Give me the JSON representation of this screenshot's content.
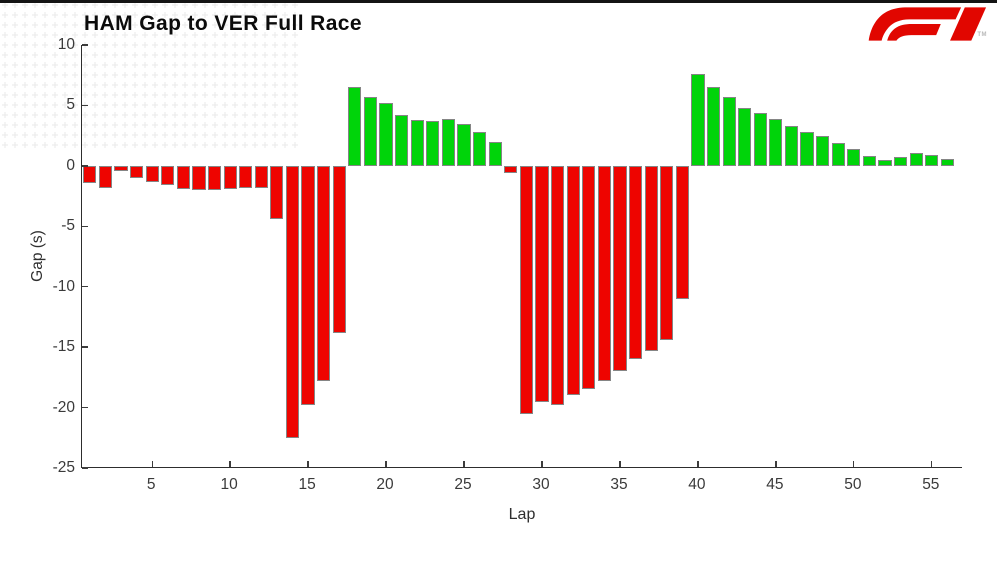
{
  "page": {
    "brand": {
      "trademark": "TM",
      "logo_color": "#E10600"
    }
  },
  "chart_data": {
    "type": "bar",
    "title": "HAM Gap to VER Full Race",
    "xlabel": "Lap",
    "ylabel": "Gap (s)",
    "xlim": [
      0.5,
      57
    ],
    "ylim": [
      -25,
      10
    ],
    "xticks": [
      5,
      10,
      15,
      20,
      25,
      30,
      35,
      40,
      45,
      50,
      55
    ],
    "yticks": [
      10,
      5,
      0,
      -5,
      -10,
      -15,
      -20,
      -25
    ],
    "grid": false,
    "legend": "none",
    "positive_color": "#00D40A",
    "negative_color": "#EE0400",
    "bar_edge_color": "#858585",
    "x": [
      1,
      2,
      3,
      4,
      5,
      6,
      7,
      8,
      9,
      10,
      11,
      12,
      13,
      14,
      15,
      16,
      17,
      18,
      19,
      20,
      21,
      22,
      23,
      24,
      25,
      26,
      27,
      28,
      29,
      30,
      31,
      32,
      33,
      34,
      35,
      36,
      37,
      38,
      39,
      40,
      41,
      42,
      43,
      44,
      45,
      46,
      47,
      48,
      49,
      50,
      51,
      52,
      53,
      54,
      55,
      56
    ],
    "values": [
      -1.4,
      -1.8,
      -0.4,
      -1.0,
      -1.3,
      -1.6,
      -1.9,
      -2.0,
      -2.0,
      -1.9,
      -1.8,
      -1.8,
      -4.4,
      -22.5,
      -19.8,
      -17.8,
      -13.8,
      6.5,
      5.7,
      5.2,
      4.2,
      3.8,
      3.7,
      3.9,
      3.5,
      2.8,
      2.0,
      -0.6,
      -20.5,
      -19.5,
      -19.8,
      -19.0,
      -18.5,
      -17.8,
      -17.0,
      -16.0,
      -15.3,
      -14.4,
      -11.0,
      7.6,
      6.5,
      5.7,
      4.8,
      4.4,
      3.9,
      3.3,
      2.8,
      2.5,
      1.9,
      1.4,
      0.8,
      0.5,
      0.7,
      1.1,
      0.9,
      0.6
    ]
  }
}
